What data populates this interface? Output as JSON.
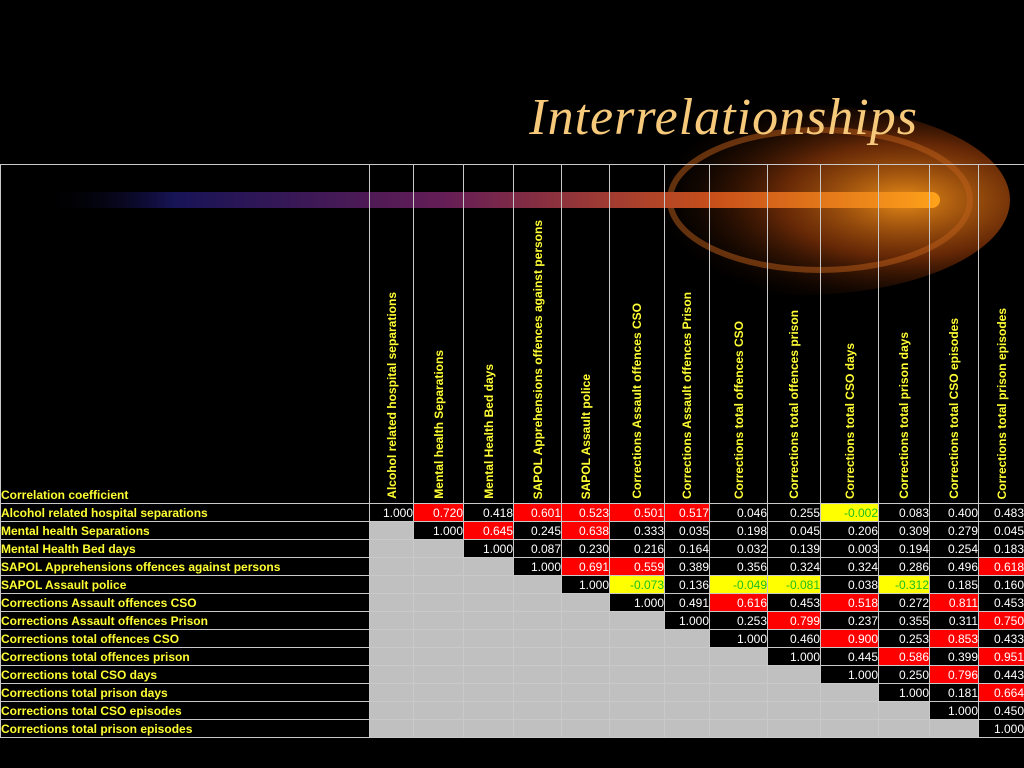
{
  "slide": {
    "title": "Interrelationships"
  },
  "colors": {
    "background": "#000000",
    "title": "#f7c97a",
    "label": "#ffff33",
    "strong": "#ff0000",
    "negative": "#ffff00",
    "blank": "#c0c0c0"
  },
  "table": {
    "corner_label": "Correlation coefficient",
    "columns": [
      "Alcohol related hospital separations",
      "Mental health Separations",
      "Mental Health Bed days",
      "SAPOL Apprehensions offences against persons",
      "SAPOL Assault police",
      "Corrections Assault  offences CSO",
      "Corrections Assault offences Prison",
      "Corrections total offences CSO",
      "Corrections total offences prison",
      "Corrections total CSO days",
      "Corrections total prison days",
      "Corrections total  CSO episodes",
      "Corrections total  prison episodes"
    ],
    "rows": [
      {
        "label": "Alcohol related hospital separations",
        "values": [
          "1.000",
          "0.720",
          "0.418",
          "0.601",
          "0.523",
          "0.501",
          "0.517",
          "0.046",
          "0.255",
          "-0.002",
          "0.083",
          "0.400",
          "0.483"
        ],
        "styles": [
          "d",
          "r",
          "k",
          "r",
          "r",
          "r",
          "r",
          "k",
          "k",
          "y",
          "k",
          "k",
          "k"
        ]
      },
      {
        "label": "Mental health Separations",
        "values": [
          "1.000",
          "0.645",
          "0.245",
          "0.638",
          "0.333",
          "0.035",
          "0.198",
          "0.045",
          "0.206",
          "0.309",
          "0.279",
          "0.045"
        ],
        "styles": [
          "d",
          "r",
          "k",
          "r",
          "k",
          "k",
          "k",
          "k",
          "k",
          "k",
          "k",
          "k"
        ]
      },
      {
        "label": "Mental Health Bed days",
        "values": [
          "1.000",
          "0.087",
          "0.230",
          "0.216",
          "0.164",
          "0.032",
          "0.139",
          "0.003",
          "0.194",
          "0.254",
          "0.183"
        ],
        "styles": [
          "d",
          "k",
          "k",
          "k",
          "k",
          "k",
          "k",
          "k",
          "k",
          "k",
          "k"
        ]
      },
      {
        "label": "SAPOL Apprehensions offences against persons",
        "values": [
          "1.000",
          "0.691",
          "0.559",
          "0.389",
          "0.356",
          "0.324",
          "0.324",
          "0.286",
          "0.496",
          "0.618"
        ],
        "styles": [
          "d",
          "r",
          "r",
          "k",
          "k",
          "k",
          "k",
          "k",
          "k",
          "r"
        ]
      },
      {
        "label": "SAPOL Assault police",
        "values": [
          "1.000",
          "-0.073",
          "0.136",
          "-0.049",
          "-0.081",
          "0.038",
          "-0.312",
          "0.185",
          "0.160"
        ],
        "styles": [
          "d",
          "y",
          "k",
          "y",
          "y",
          "k",
          "y",
          "k",
          "k"
        ]
      },
      {
        "label": "Corrections Assault offences CSO",
        "values": [
          "1.000",
          "0.491",
          "0.616",
          "0.453",
          "0.518",
          "0.272",
          "0.811",
          "0.453"
        ],
        "styles": [
          "d",
          "k",
          "r",
          "k",
          "r",
          "k",
          "r",
          "k"
        ]
      },
      {
        "label": "Corrections Assault offences Prison",
        "values": [
          "1.000",
          "0.253",
          "0.799",
          "0.237",
          "0.355",
          "0.311",
          "0.750"
        ],
        "styles": [
          "d",
          "k",
          "r",
          "k",
          "k",
          "k",
          "r"
        ]
      },
      {
        "label": "Corrections total  offences CSO",
        "values": [
          "1.000",
          "0.460",
          "0.900",
          "0.253",
          "0.853",
          "0.433"
        ],
        "styles": [
          "d",
          "k",
          "r",
          "k",
          "r",
          "k"
        ]
      },
      {
        "label": "Corrections total  offences prison",
        "values": [
          "1.000",
          "0.445",
          "0.586",
          "0.399",
          "0.951"
        ],
        "styles": [
          "d",
          "k",
          "r",
          "k",
          "r"
        ]
      },
      {
        "label": "Corrections total CSO days",
        "values": [
          "1.000",
          "0.250",
          "0.796",
          "0.443"
        ],
        "styles": [
          "d",
          "k",
          "r",
          "k"
        ]
      },
      {
        "label": "Corrections total prison days",
        "values": [
          "1.000",
          "0.181",
          "0.664"
        ],
        "styles": [
          "d",
          "k",
          "r"
        ]
      },
      {
        "label": "Corrections total  CSO episodes",
        "values": [
          "1.000",
          "0.450"
        ],
        "styles": [
          "d",
          "k"
        ]
      },
      {
        "label": "Corrections total  prison episodes",
        "values": [
          "1.000"
        ],
        "styles": [
          "d"
        ]
      }
    ]
  }
}
